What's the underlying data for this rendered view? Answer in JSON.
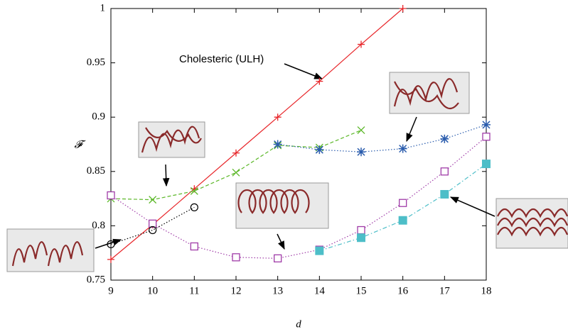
{
  "chart_data": {
    "type": "line",
    "xlabel": "d",
    "ylabel": "𝓕",
    "annotation": "Cholesteric (ULH)",
    "xlim": [
      9,
      18
    ],
    "ylim": [
      0.75,
      1
    ],
    "xticks": [
      9,
      10,
      11,
      12,
      13,
      14,
      15,
      16,
      17,
      18
    ],
    "yticks": [
      0.75,
      0.8,
      0.85,
      0.9,
      0.95,
      1
    ],
    "series": [
      {
        "color": "#e8262a",
        "marker": "plus",
        "dash": "solid",
        "x": [
          9,
          10,
          11,
          12,
          13,
          14,
          15,
          16
        ],
        "values": [
          0.769,
          0.801,
          0.834,
          0.867,
          0.9,
          0.933,
          0.967,
          1.0
        ]
      },
      {
        "color": "#5db82a",
        "marker": "cross",
        "dash": "dashed",
        "x": [
          9,
          10,
          11,
          12,
          13,
          14,
          15
        ],
        "values": [
          0.825,
          0.824,
          0.832,
          0.849,
          0.874,
          0.872,
          0.888
        ]
      },
      {
        "color": "#2a5cad",
        "marker": "star",
        "dash": "dotted",
        "x": [
          13,
          14,
          15,
          16,
          17,
          18
        ],
        "values": [
          0.875,
          0.87,
          0.868,
          0.871,
          0.88,
          0.893
        ]
      },
      {
        "color": "#a03ca8",
        "marker": "square",
        "dash": "dotted",
        "x": [
          9,
          10,
          11,
          12,
          13,
          14,
          15,
          16,
          17,
          18
        ],
        "values": [
          0.828,
          0.802,
          0.781,
          0.771,
          0.77,
          0.778,
          0.796,
          0.821,
          0.85,
          0.882
        ]
      },
      {
        "color": "#4dbec8",
        "marker": "filled-square",
        "dash": "dashdot",
        "x": [
          14,
          15,
          16,
          17,
          18
        ],
        "values": [
          0.777,
          0.789,
          0.805,
          0.829,
          0.857
        ]
      },
      {
        "color": "#000000",
        "marker": "circle",
        "dash": "dotted",
        "x": [
          9,
          10,
          11
        ],
        "values": [
          0.783,
          0.796,
          0.817
        ]
      }
    ]
  }
}
